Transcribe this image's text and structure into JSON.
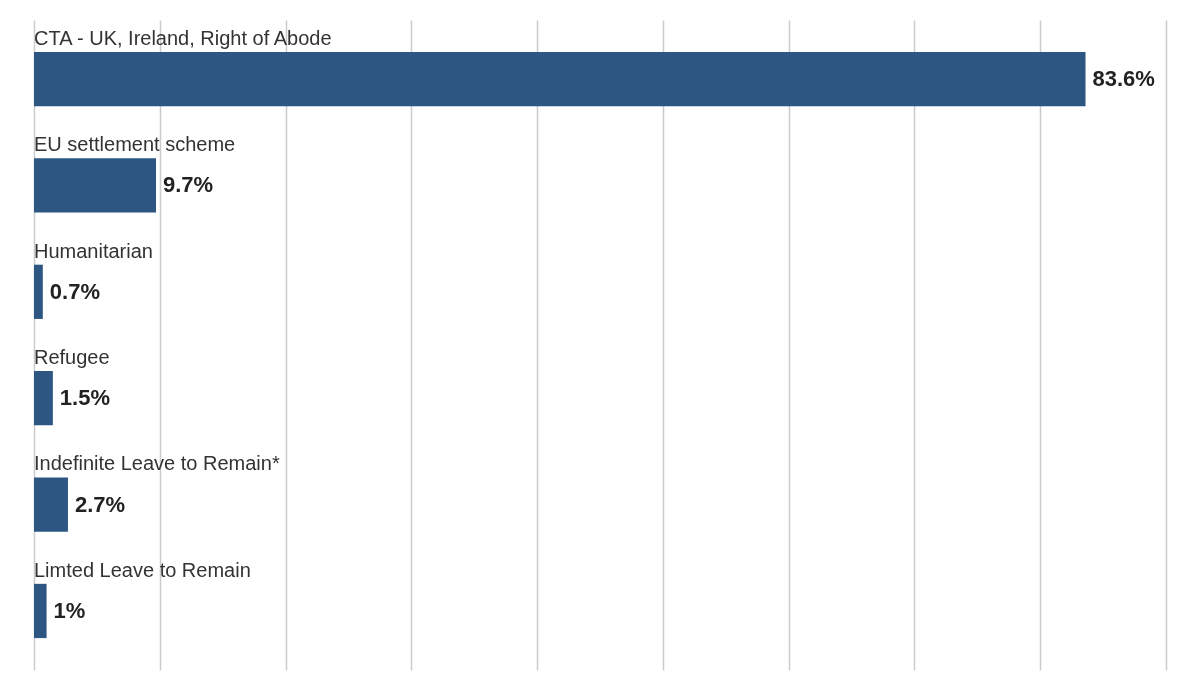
{
  "chart_data": {
    "type": "bar",
    "orientation": "horizontal",
    "categories": [
      "CTA - UK, Ireland, Right of Abode",
      "EU settlement scheme",
      "Humanitarian",
      "Refugee",
      "Indefinite Leave to Remain*",
      "Limted Leave to Remain"
    ],
    "values": [
      83.6,
      9.7,
      0.7,
      1.5,
      2.7,
      1
    ],
    "value_labels": [
      "83.6%",
      "9.7%",
      "0.7%",
      "1.5%",
      "2.7%",
      "1%"
    ],
    "color": "#2d5682",
    "xlim": [
      0,
      90
    ],
    "xticks": [
      {
        "value": 0,
        "label": null
      },
      {
        "value": 10,
        "label": null
      },
      {
        "value": 20,
        "label": null
      },
      {
        "value": 30,
        "label": null
      },
      {
        "value": 40,
        "label": null
      },
      {
        "value": 50,
        "label": null
      },
      {
        "value": 60,
        "label": null
      },
      {
        "value": 70,
        "label": null
      },
      {
        "value": 80,
        "label": null
      },
      {
        "value": 90,
        "label": null
      }
    ],
    "grid": "x"
  }
}
